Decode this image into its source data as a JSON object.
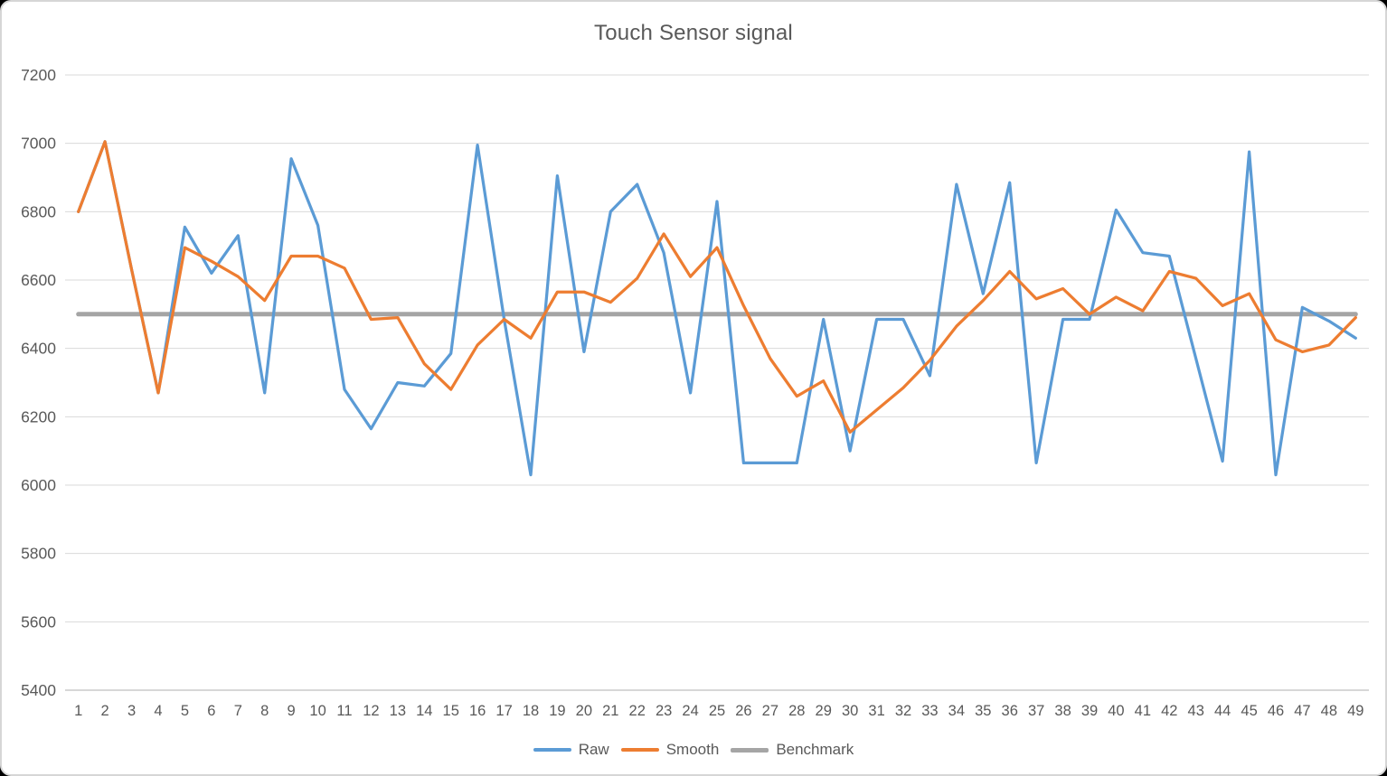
{
  "window": {
    "background_color": "#ffffff",
    "border_color": "#d6d6d6",
    "outside_color": "#000000"
  },
  "chart_data": {
    "type": "line",
    "title": "Touch Sensor signal",
    "xlabel": "",
    "ylabel": "",
    "x": [
      1,
      2,
      3,
      4,
      5,
      6,
      7,
      8,
      9,
      10,
      11,
      12,
      13,
      14,
      15,
      16,
      17,
      18,
      19,
      20,
      21,
      22,
      23,
      24,
      25,
      26,
      27,
      28,
      29,
      30,
      31,
      32,
      33,
      34,
      35,
      36,
      37,
      38,
      39,
      40,
      41,
      42,
      43,
      44,
      45,
      46,
      47,
      48,
      49
    ],
    "series": [
      {
        "name": "Raw",
        "color": "#5B9BD5",
        "stroke_width": 3.25,
        "values": [
          6800,
          7005,
          6630,
          6270,
          6755,
          6620,
          6730,
          6270,
          6955,
          6760,
          6280,
          6165,
          6300,
          6290,
          6385,
          6995,
          6485,
          6030,
          6905,
          6390,
          6800,
          6880,
          6680,
          6270,
          6830,
          6065,
          6065,
          6065,
          6485,
          6100,
          6485,
          6485,
          6320,
          6880,
          6560,
          6885,
          6065,
          6485,
          6485,
          6805,
          6680,
          6670,
          6370,
          6070,
          6975,
          6030,
          6520,
          6480,
          6430
        ]
      },
      {
        "name": "Smooth",
        "color": "#ED7D31",
        "stroke_width": 3.25,
        "values": [
          6800,
          7005,
          6630,
          6270,
          6695,
          6655,
          6610,
          6540,
          6670,
          6670,
          6635,
          6485,
          6490,
          6355,
          6280,
          6410,
          6485,
          6430,
          6565,
          6565,
          6535,
          6605,
          6735,
          6610,
          6695,
          6525,
          6370,
          6260,
          6305,
          6155,
          6220,
          6285,
          6365,
          6465,
          6540,
          6625,
          6545,
          6575,
          6500,
          6550,
          6510,
          6625,
          6605,
          6525,
          6560,
          6425,
          6390,
          6410,
          6490
        ]
      },
      {
        "name": "Benchmark",
        "color": "#A5A5A5",
        "stroke_width": 5,
        "constant": 6500
      }
    ],
    "ylim": [
      5400,
      7200
    ],
    "yticks": [
      7200,
      7000,
      6800,
      6600,
      6400,
      6200,
      6000,
      5800,
      5600,
      5400
    ],
    "grid": true,
    "grid_color": "#D9D9D9",
    "axis_line_color": "#BFBFBF",
    "text_color": "#595959",
    "legend_position": "bottom"
  }
}
